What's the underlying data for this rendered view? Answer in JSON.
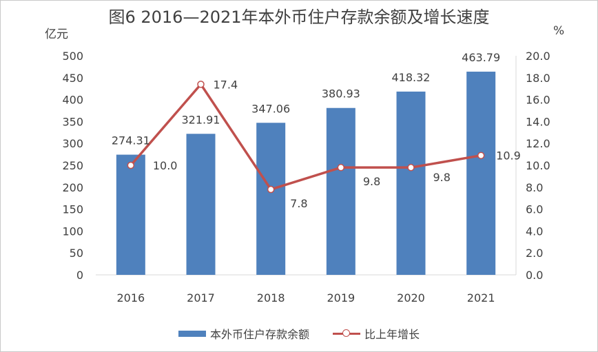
{
  "chart_data": {
    "type": "bar",
    "title": "图6   2016—2021年本外币住户存款余额及增长速度",
    "categories": [
      "2016",
      "2017",
      "2018",
      "2019",
      "2020",
      "2021"
    ],
    "left_axis": {
      "unit": "亿元",
      "ylim": [
        0,
        500
      ],
      "ticks": [
        "0",
        "50",
        "100",
        "150",
        "200",
        "250",
        "300",
        "350",
        "400",
        "450",
        "500"
      ]
    },
    "right_axis": {
      "unit": "%",
      "ylim": [
        0,
        20
      ],
      "ticks": [
        "0.0",
        "2.0",
        "4.0",
        "6.0",
        "8.0",
        "10.0",
        "12.0",
        "14.0",
        "16.0",
        "18.0",
        "20.0"
      ]
    },
    "series": [
      {
        "name": "本外币住户存款余额",
        "type": "bar",
        "axis": "left",
        "color": "#4f81bd",
        "values": [
          274.31,
          321.91,
          347.06,
          380.93,
          418.32,
          463.79
        ],
        "labels": [
          "274.31",
          "321.91",
          "347.06",
          "380.93",
          "418.32",
          "463.79"
        ]
      },
      {
        "name": "比上年增长",
        "type": "line",
        "axis": "right",
        "color": "#c0504d",
        "values": [
          10.0,
          17.4,
          7.8,
          9.8,
          9.8,
          10.9
        ],
        "labels": [
          "10.0",
          "17.4",
          "7.8",
          "9.8",
          "9.8",
          "10.9"
        ]
      }
    ],
    "grid": false,
    "legend_position": "bottom"
  }
}
